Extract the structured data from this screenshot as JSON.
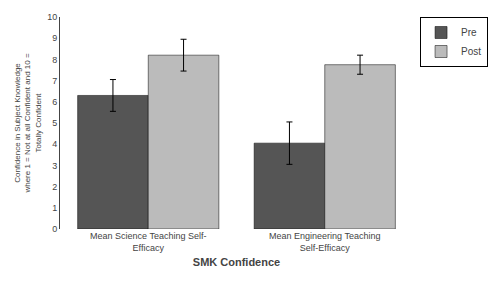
{
  "chart_data": {
    "type": "bar",
    "xlabel": "SMK Confidence",
    "ylabel": "Confidence in Subject Knowledge\nwhere 1 = Not at all Confident and 10 =\nTotally Confident",
    "categories": [
      "Mean Science Teaching Self-\nEfficacy",
      "Mean Engineering Teaching\nSelf-Efficacy"
    ],
    "series": [
      {
        "name": "Pre",
        "color": "#555555",
        "values": [
          6.3,
          4.05
        ],
        "errors": [
          0.75,
          1.0
        ]
      },
      {
        "name": "Post",
        "color": "#bbbbbb",
        "values": [
          8.2,
          7.75
        ],
        "errors": [
          0.75,
          0.45
        ]
      }
    ],
    "ylim": [
      0,
      10
    ],
    "yticks": [
      0,
      1,
      2,
      3,
      4,
      5,
      6,
      7,
      8,
      9,
      10
    ],
    "grid": false,
    "legend": "upper right"
  }
}
